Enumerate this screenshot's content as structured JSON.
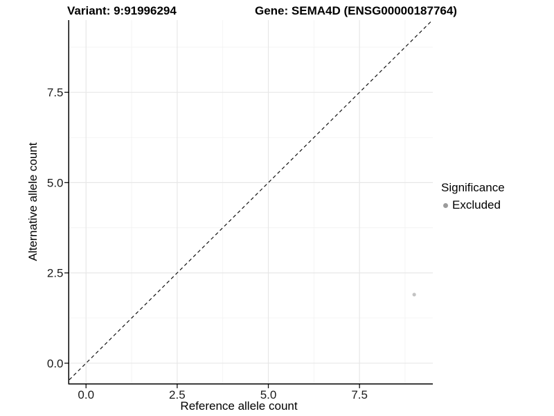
{
  "chart_data": {
    "type": "scatter",
    "titles": {
      "left": "Variant: 9:91996294",
      "right": "Gene: SEMA4D (ENSG00000187764)"
    },
    "xlabel": "Reference allele count",
    "ylabel": "Alternative allele count",
    "xlim": [
      -0.46,
      9.51
    ],
    "ylim": [
      -0.56,
      9.5
    ],
    "x_ticks": {
      "values": [
        0,
        2.5,
        5,
        7.5
      ],
      "labels": [
        "0.0",
        "2.5",
        "5.0",
        "7.5"
      ]
    },
    "y_ticks": {
      "values": [
        0,
        2.5,
        5,
        7.5
      ],
      "labels": [
        "0.0",
        "2.5",
        "5.0",
        "7.5"
      ]
    },
    "x_minor_ticks": [
      1.25,
      3.75,
      6.25,
      8.75
    ],
    "y_minor_ticks": [
      1.25,
      3.75,
      6.25,
      8.75
    ],
    "grid": {
      "enabled": true,
      "major_color": "#e7e7e7",
      "minor_color": "#f3f3f3"
    },
    "reference_line": {
      "kind": "identity",
      "slope": 1,
      "intercept": 0,
      "style": "dashed",
      "color": "#111111"
    },
    "series": [
      {
        "name": "Excluded",
        "color": "#c3c3c3",
        "point_radius": 2.6,
        "points": [
          [
            9.0,
            1.9
          ]
        ]
      }
    ],
    "legend": {
      "title": "Significance",
      "position": "right",
      "items": [
        {
          "label": "Excluded",
          "color": "#9b9b9b"
        }
      ]
    }
  },
  "colors": {
    "background": "#ffffff",
    "axis_line": "#000000",
    "tick_text": "#1a1a1a"
  }
}
